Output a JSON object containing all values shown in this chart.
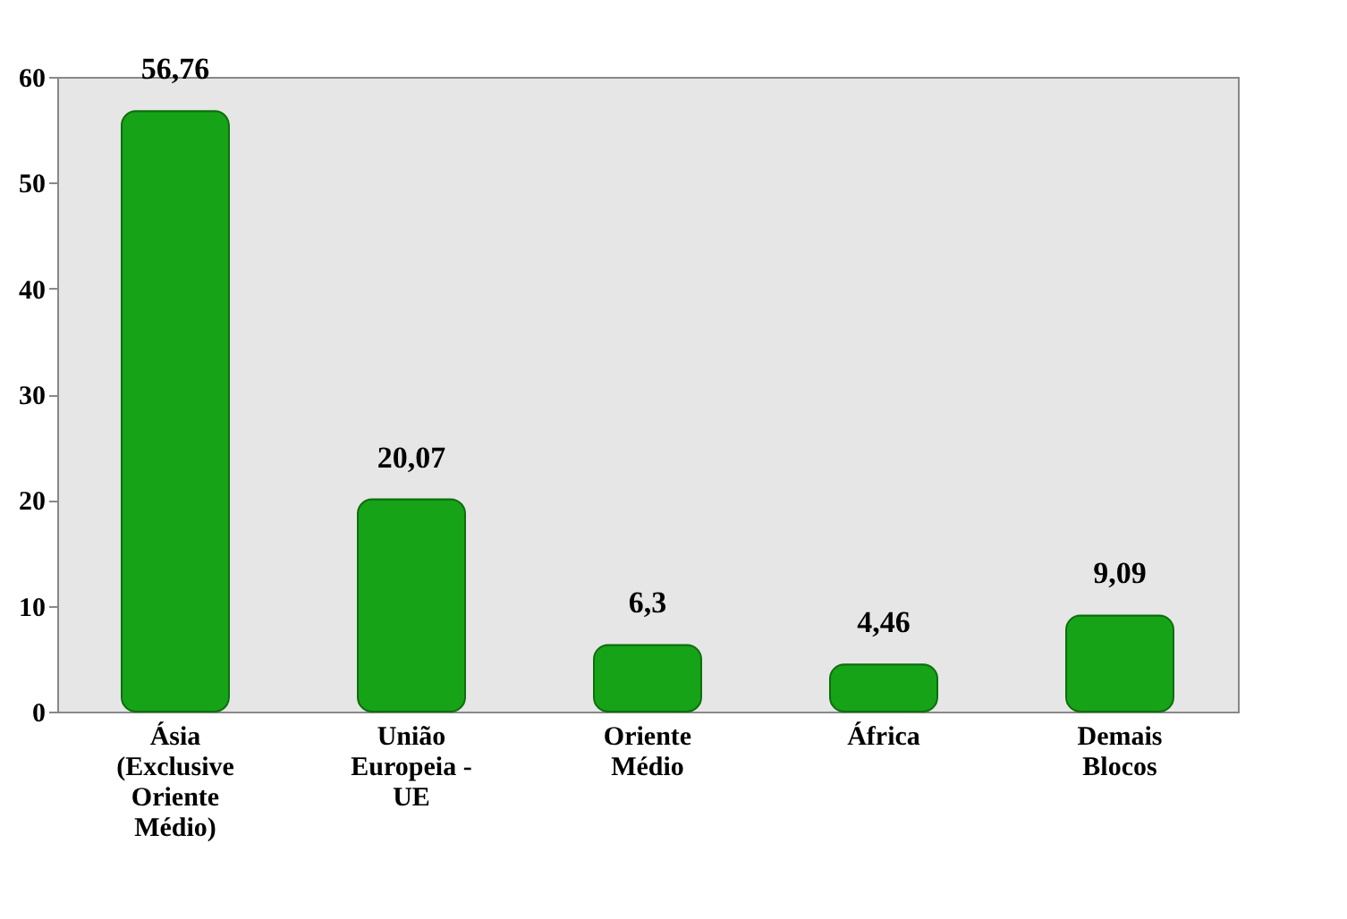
{
  "chart_data": {
    "type": "bar",
    "categories": [
      "Ásia\n(Exclusive\nOriente\nMédio)",
      "União\nEuropeia -\nUE",
      "Oriente\nMédio",
      "África",
      "Demais\nBlocos"
    ],
    "values": [
      56.76,
      20.07,
      6.3,
      4.46,
      9.09
    ],
    "value_labels": [
      "56,76",
      "20,07",
      "6,3",
      "4,46",
      "9,09"
    ],
    "color": "#17a317",
    "ylim": [
      0,
      60
    ],
    "yticks": [
      0,
      10,
      20,
      30,
      40,
      50,
      60
    ],
    "grid": false
  }
}
